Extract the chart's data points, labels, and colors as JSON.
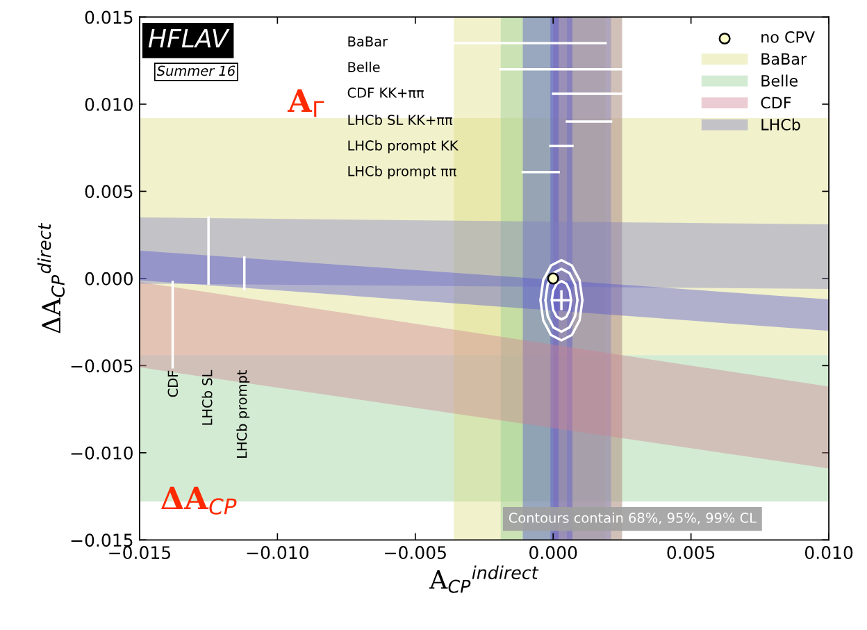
{
  "chart_data": {
    "type": "line",
    "xlabel": "A$_{CP}$$^{indirect}$",
    "ylabel": "ΔA$_{CP}$$^{direct}$",
    "xlim": [
      -0.015,
      0.01
    ],
    "ylim": [
      -0.015,
      0.015
    ],
    "xticks": [
      {
        "value": -0.015,
        "label": "−0.015"
      },
      {
        "value": -0.01,
        "label": "−0.010"
      },
      {
        "value": -0.005,
        "label": "−0.005"
      },
      {
        "value": 0,
        "label": "0.000"
      },
      {
        "value": 0.005,
        "label": "0.005"
      },
      {
        "value": 0.01,
        "label": "0.010"
      }
    ],
    "yticks": [
      {
        "value": -0.015,
        "label": "−0.015"
      },
      {
        "value": -0.01,
        "label": "−0.010"
      },
      {
        "value": -0.005,
        "label": "−0.005"
      },
      {
        "value": 0,
        "label": "0.000"
      },
      {
        "value": 0.005,
        "label": "0.005"
      },
      {
        "value": 0.01,
        "label": "0.010"
      },
      {
        "value": 0.015,
        "label": "0.015"
      }
    ],
    "grid": false,
    "legend": "top right",
    "bands": [
      {
        "axis": "y",
        "from": -0.0044,
        "to": 0.0092,
        "label": "BaBar",
        "color": "#dcdc80"
      },
      {
        "axis": "y",
        "from": -0.0128,
        "to": -0.0044,
        "label": "Belle",
        "color": "#90cc90"
      },
      {
        "axis": "x",
        "from": -0.0036,
        "to": 0.0019,
        "color": "#dcdc80"
      },
      {
        "axis": "x",
        "from": -0.0019,
        "to": 0.0025,
        "color": "#90cc90"
      },
      {
        "axis": "x",
        "from": 0.0,
        "to": 0.0025,
        "color": "#d08090"
      },
      {
        "axis": "x",
        "from": 0.0005,
        "to": 0.0021,
        "color": "#8080c0"
      },
      {
        "axis": "x",
        "from": -0.0001,
        "to": 0.0007,
        "color": "#5050d0"
      },
      {
        "axis": "x",
        "from": -0.0011,
        "to": 0.0002,
        "color": "#5050d0"
      }
    ],
    "series": [
      {
        "type": "area",
        "name": "CDF",
        "color": "#d08090",
        "x": [
          -0.015,
          0.01
        ],
        "values": [
          null,
          null
        ],
        "lower": [
          -0.0051,
          -0.0109
        ],
        "upper": [
          -0.0002,
          -0.0062
        ]
      },
      {
        "type": "area",
        "name": "LHCb",
        "color": "#8080c0",
        "x": [
          -0.015,
          0.01
        ],
        "values": [
          null,
          null
        ],
        "lower": [
          -0.0003,
          -0.0006
        ],
        "upper": [
          0.0035,
          0.0031
        ]
      },
      {
        "type": "area",
        "color": "#5050d0",
        "x": [
          -0.015,
          0.01
        ],
        "values": [
          null,
          null
        ],
        "lower": [
          -0.0001,
          -0.003
        ],
        "upper": [
          0.0016,
          -0.0012
        ]
      },
      {
        "color": "#ffffff",
        "x": [
          -0.0036,
          0.0019
        ],
        "values": [
          0.0135,
          0.0135
        ]
      },
      {
        "color": "#ffffff",
        "x": [
          -0.0019,
          0.0025
        ],
        "values": [
          0.012,
          0.012
        ]
      },
      {
        "color": "#ffffff",
        "x": [
          0.0,
          0.0025
        ],
        "values": [
          0.0106,
          0.0106
        ]
      },
      {
        "color": "#ffffff",
        "x": [
          0.0005,
          0.0021
        ],
        "values": [
          0.009,
          0.009
        ]
      },
      {
        "color": "#ffffff",
        "x": [
          -0.0001,
          0.0007
        ],
        "values": [
          0.0076,
          0.0076
        ]
      },
      {
        "color": "#ffffff",
        "x": [
          -0.0011,
          0.0002
        ],
        "values": [
          0.0061,
          0.0061
        ]
      },
      {
        "color": "#ffffff",
        "x": [
          -0.0138,
          -0.0138
        ],
        "values": [
          -0.0051,
          -0.0002
        ]
      },
      {
        "color": "#ffffff",
        "x": [
          -0.0125,
          -0.0125
        ],
        "values": [
          -0.0003,
          0.0035
        ]
      },
      {
        "color": "#ffffff",
        "x": [
          -0.0112,
          -0.0112
        ],
        "values": [
          -0.0006,
          0.0012
        ]
      },
      {
        "color": "#ffffff",
        "x": [
          0.0,
          0.0006
        ],
        "values": [
          -0.00125,
          -0.00125
        ]
      },
      {
        "color": "#ffffff",
        "x": [
          0.0003,
          0.0003
        ],
        "values": [
          -0.00075,
          -0.00175
        ]
      },
      {
        "color": "#ffffff",
        "x": [
          -5e-05,
          0.0,
          0.00013,
          0.0003,
          0.00048,
          0.0006,
          0.00065,
          null,
          -5e-05,
          0.0,
          0.00013,
          0.0003,
          0.00048,
          0.0006,
          0.00065
        ],
        "values": [
          -0.00125,
          -0.0007,
          -0.0003,
          -0.00015,
          -0.0003,
          -0.0007,
          -0.00125,
          null,
          -0.00125,
          -0.0018,
          -0.0022,
          -0.00235,
          -0.0022,
          -0.0018,
          -0.00125
        ]
      },
      {
        "color": "#ffffff",
        "x": [
          -0.00028,
          -0.0002,
          1e-05,
          0.0003,
          0.00059,
          0.0008,
          0.00088,
          null,
          -0.00028,
          -0.0002,
          1e-05,
          0.0003,
          0.00059,
          0.0008,
          0.00088
        ],
        "values": [
          -0.00125,
          -0.00035,
          0.00031,
          0.00055,
          0.00031,
          -0.00035,
          -0.00125,
          null,
          -0.00125,
          -0.00215,
          -0.00281,
          -0.00305,
          -0.00281,
          -0.00215,
          -0.00125
        ]
      },
      {
        "color": "#ffffff",
        "x": [
          -0.00046,
          -0.00036,
          -8e-05,
          0.0003,
          0.00068,
          0.00096,
          0.00106,
          null,
          -0.00046,
          -0.00036,
          -8e-05,
          0.0003,
          0.00068,
          0.00096,
          0.00106
        ],
        "values": [
          -0.00125,
          -0.0001,
          0.00074,
          0.00105,
          0.00074,
          -0.0001,
          -0.00125,
          null,
          -0.00125,
          -0.0024,
          -0.00324,
          -0.00355,
          -0.00324,
          -0.0024,
          -0.00125
        ]
      },
      {
        "type": "scatter",
        "name": "no CPV",
        "color": "#ffffcc",
        "marker": "circle",
        "x": [
          0.0
        ],
        "values": [
          0.0
        ]
      }
    ],
    "annotations": [
      "BaBar",
      "Belle",
      "CDF KK+ππ",
      "LHCb SL KK+ππ",
      "LHCb prompt KK",
      "LHCb prompt ππ",
      "CDF",
      "LHCb SL",
      "LHCb prompt",
      "A$_{Γ}$",
      "ΔA$_{CP}$",
      "HFLAV",
      "Summer 16",
      "Contours contain 68%, 95%, 99% CL"
    ]
  }
}
